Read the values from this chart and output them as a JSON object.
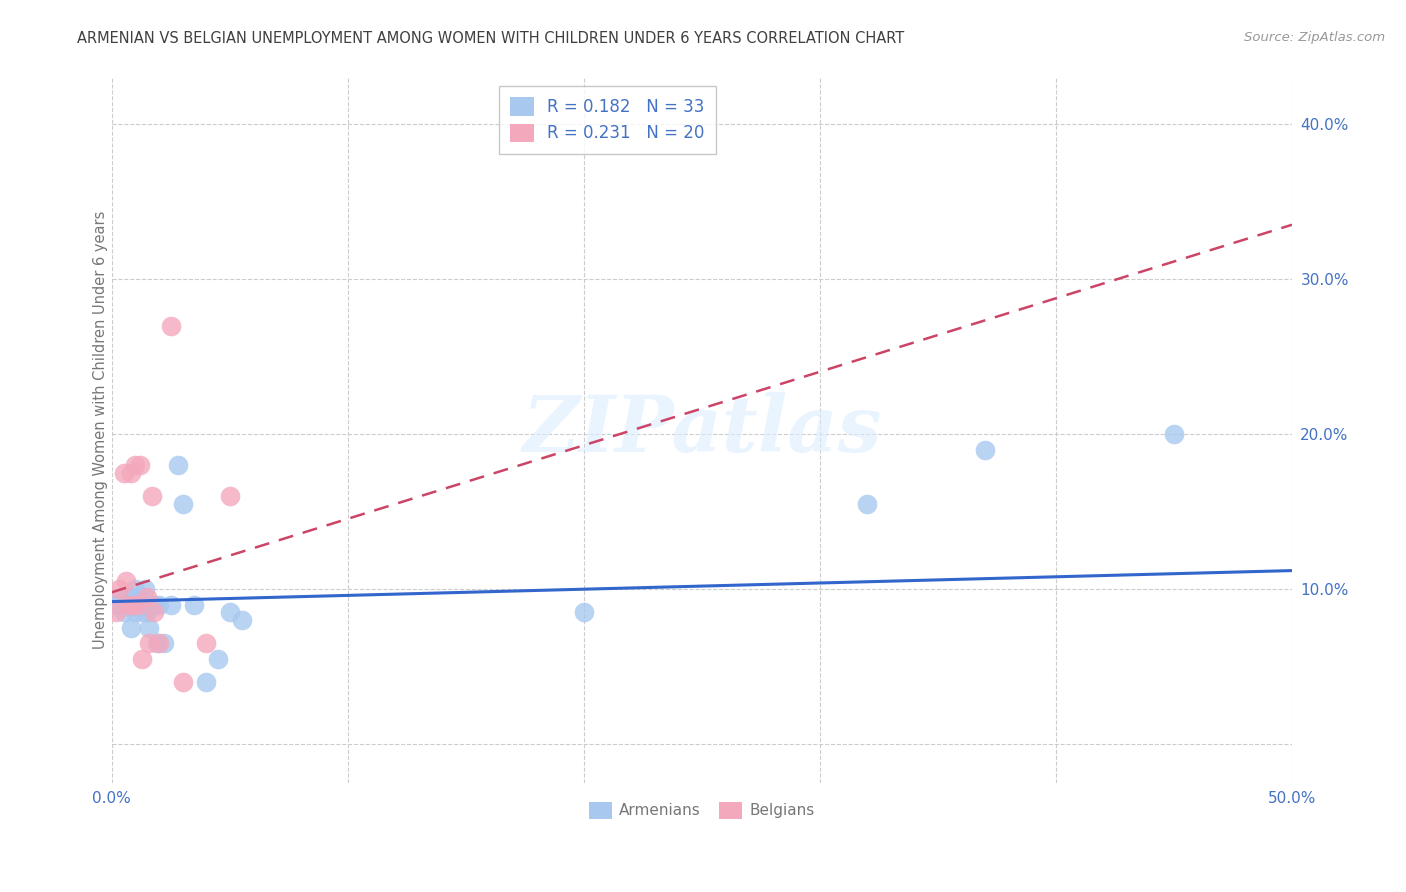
{
  "title": "ARMENIAN VS BELGIAN UNEMPLOYMENT AMONG WOMEN WITH CHILDREN UNDER 6 YEARS CORRELATION CHART",
  "source": "Source: ZipAtlas.com",
  "ylabel": "Unemployment Among Women with Children Under 6 years",
  "xlim": [
    0.0,
    0.5
  ],
  "ylim": [
    -0.025,
    0.43
  ],
  "xticks": [
    0.0,
    0.1,
    0.2,
    0.3,
    0.4,
    0.5
  ],
  "yticks": [
    0.0,
    0.1,
    0.2,
    0.3,
    0.4
  ],
  "xtick_labels": [
    "0.0%",
    "",
    "",
    "",
    "",
    "50.0%"
  ],
  "ytick_labels": [
    "",
    "10.0%",
    "20.0%",
    "30.0%",
    "40.0%"
  ],
  "legend_armenians": "Armenians",
  "legend_belgians": "Belgians",
  "R_armenians": 0.182,
  "N_armenians": 33,
  "R_belgians": 0.231,
  "N_belgians": 20,
  "color_armenians": "#a8c8f0",
  "color_belgians": "#f4a8bc",
  "trendline_armenians_color": "#3366cc",
  "trendline_belgians_color": "#cc4466",
  "background_color": "#ffffff",
  "grid_color": "#cccccc",
  "title_color": "#404040",
  "axis_label_color": "#4472c4",
  "watermark": "ZIPatlas",
  "arm_trend_x0": 0.0,
  "arm_trend_y0": 0.092,
  "arm_trend_x1": 0.5,
  "arm_trend_y1": 0.112,
  "bel_trend_x0": 0.0,
  "bel_trend_y0": 0.098,
  "bel_trend_x1": 0.5,
  "bel_trend_y1": 0.335,
  "armenian_x": [
    0.002,
    0.004,
    0.005,
    0.007,
    0.008,
    0.008,
    0.009,
    0.01,
    0.01,
    0.012,
    0.012,
    0.013,
    0.014,
    0.015,
    0.015,
    0.016,
    0.017,
    0.018,
    0.019,
    0.02,
    0.022,
    0.025,
    0.028,
    0.03,
    0.035,
    0.04,
    0.045,
    0.05,
    0.055,
    0.2,
    0.32,
    0.37,
    0.45
  ],
  "armenian_y": [
    0.09,
    0.095,
    0.085,
    0.09,
    0.075,
    0.095,
    0.095,
    0.085,
    0.1,
    0.09,
    0.095,
    0.085,
    0.1,
    0.085,
    0.09,
    0.075,
    0.09,
    0.09,
    0.065,
    0.09,
    0.065,
    0.09,
    0.18,
    0.155,
    0.09,
    0.04,
    0.055,
    0.085,
    0.08,
    0.085,
    0.155,
    0.19,
    0.2
  ],
  "belgian_x": [
    0.002,
    0.003,
    0.005,
    0.006,
    0.007,
    0.008,
    0.009,
    0.01,
    0.011,
    0.012,
    0.013,
    0.015,
    0.016,
    0.017,
    0.018,
    0.02,
    0.025,
    0.03,
    0.04,
    0.05
  ],
  "belgian_y": [
    0.085,
    0.1,
    0.175,
    0.105,
    0.09,
    0.175,
    0.09,
    0.18,
    0.09,
    0.18,
    0.055,
    0.095,
    0.065,
    0.16,
    0.085,
    0.065,
    0.27,
    0.04,
    0.065,
    0.16
  ]
}
